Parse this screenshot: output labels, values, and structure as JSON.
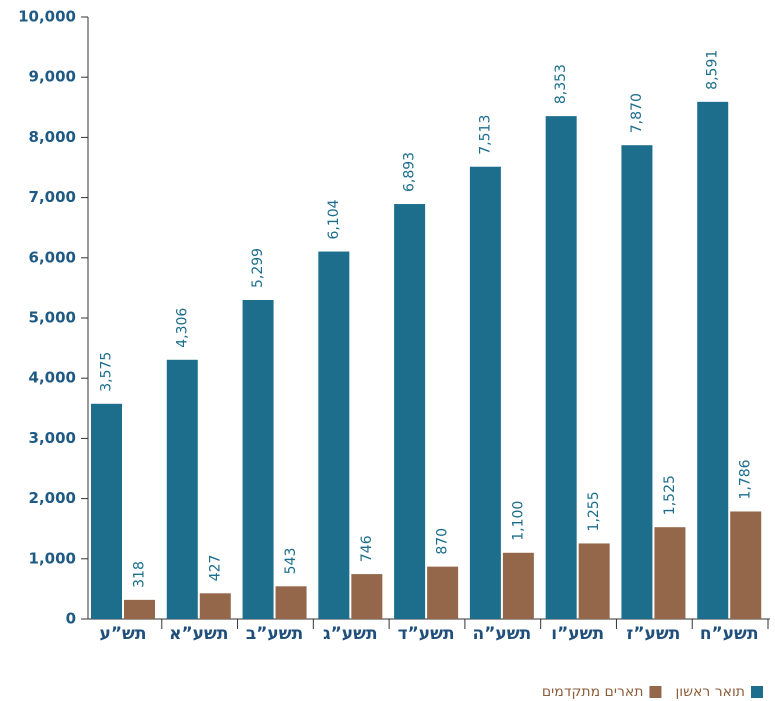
{
  "chart_data": {
    "type": "bar",
    "categories": [
      "תש”ע",
      "תשע”א",
      "תשע”ב",
      "תשע”ג",
      "תשע”ד",
      "תשע”ה",
      "תשע”ו",
      "תשע”ז",
      "תשע”ח"
    ],
    "series": [
      {
        "name": "תואר ראשון",
        "color": "#1c6e8c",
        "values": [
          3575,
          4306,
          5299,
          6104,
          6893,
          7513,
          8353,
          7870,
          8591
        ],
        "value_labels": [
          "3,575",
          "4,306",
          "5,299",
          "6,104",
          "6,893",
          "7,513",
          "8,353",
          "7,870",
          "8,591"
        ]
      },
      {
        "name": "תארים מתקדמים",
        "color": "#95674a",
        "values": [
          318,
          427,
          543,
          746,
          870,
          1100,
          1255,
          1525,
          1786
        ],
        "value_labels": [
          "318",
          "427",
          "543",
          "746",
          "870",
          "1,100",
          "1,255",
          "1,525",
          "1,786"
        ]
      }
    ],
    "ylim": [
      0,
      10000
    ],
    "yticks": [
      0,
      {
        "value": 1000,
        "label": "1,000"
      },
      {
        "value": 2000,
        "label": "2,000"
      },
      {
        "value": 3000,
        "label": "3,000"
      },
      {
        "value": 4000,
        "label": "4,000"
      },
      {
        "value": 5000,
        "label": "5,000"
      },
      {
        "value": 6000,
        "label": "6,000"
      },
      {
        "value": 7000,
        "label": "7,000"
      },
      {
        "value": 8000,
        "label": "8,000"
      },
      {
        "value": 9000,
        "label": "9,000"
      },
      {
        "value": 10000,
        "label": "10,000"
      }
    ],
    "grid": false
  }
}
